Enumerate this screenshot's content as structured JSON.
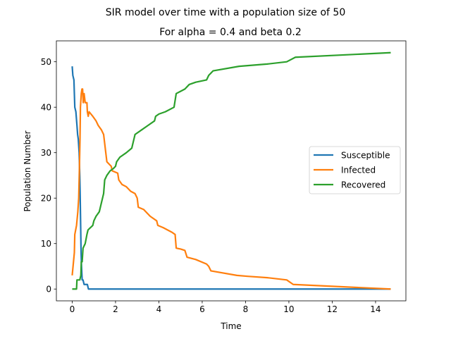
{
  "chart_data": {
    "type": "line",
    "title": "SIR model over time with a population size of 50",
    "subtitle": "For alpha = 0.4 and beta 0.2",
    "xlabel": "Time",
    "ylabel": "Population Number",
    "xlim": [
      -0.73,
      15.4
    ],
    "ylim": [
      -2.6,
      54.6
    ],
    "xticks": [
      0,
      2,
      4,
      6,
      8,
      10,
      12,
      14
    ],
    "yticks": [
      0,
      10,
      20,
      30,
      40,
      50
    ],
    "grid": false,
    "legend_position": "center-right",
    "series": [
      {
        "name": "Susceptible",
        "color": "#1f77b4",
        "points": [
          [
            0,
            49
          ],
          [
            0.03,
            47
          ],
          [
            0.08,
            46
          ],
          [
            0.1,
            43
          ],
          [
            0.12,
            40
          ],
          [
            0.17,
            39
          ],
          [
            0.22,
            36
          ],
          [
            0.25,
            34
          ],
          [
            0.28,
            33
          ],
          [
            0.32,
            30
          ],
          [
            0.35,
            25
          ],
          [
            0.37,
            20
          ],
          [
            0.39,
            14
          ],
          [
            0.41,
            8
          ],
          [
            0.43,
            5
          ],
          [
            0.46,
            2
          ],
          [
            0.5,
            2
          ],
          [
            0.55,
            1
          ],
          [
            0.7,
            1
          ],
          [
            0.75,
            0
          ],
          [
            14.7,
            0
          ]
        ]
      },
      {
        "name": "Infected",
        "color": "#ff7f0e",
        "points": [
          [
            0,
            3
          ],
          [
            0.04,
            5
          ],
          [
            0.1,
            8
          ],
          [
            0.12,
            12
          ],
          [
            0.2,
            14
          ],
          [
            0.26,
            17
          ],
          [
            0.3,
            20
          ],
          [
            0.33,
            26
          ],
          [
            0.36,
            33
          ],
          [
            0.38,
            40
          ],
          [
            0.42,
            43
          ],
          [
            0.45,
            44
          ],
          [
            0.48,
            44
          ],
          [
            0.51,
            41
          ],
          [
            0.55,
            43
          ],
          [
            0.6,
            41
          ],
          [
            0.68,
            41
          ],
          [
            0.7,
            39
          ],
          [
            0.74,
            38
          ],
          [
            0.78,
            39
          ],
          [
            0.95,
            38
          ],
          [
            1.1,
            37
          ],
          [
            1.2,
            36
          ],
          [
            1.35,
            35
          ],
          [
            1.45,
            34
          ],
          [
            1.5,
            32
          ],
          [
            1.55,
            30
          ],
          [
            1.6,
            28
          ],
          [
            1.8,
            27
          ],
          [
            1.85,
            26
          ],
          [
            2.1,
            25.5
          ],
          [
            2.15,
            24
          ],
          [
            2.3,
            23
          ],
          [
            2.5,
            22.5
          ],
          [
            2.7,
            21.5
          ],
          [
            2.9,
            21
          ],
          [
            3.0,
            20
          ],
          [
            3.05,
            18
          ],
          [
            3.3,
            17.5
          ],
          [
            3.6,
            16
          ],
          [
            3.9,
            15
          ],
          [
            3.95,
            14
          ],
          [
            4.2,
            13.5
          ],
          [
            4.6,
            12.5
          ],
          [
            4.75,
            12
          ],
          [
            4.8,
            9
          ],
          [
            5.0,
            8.8
          ],
          [
            5.2,
            8.5
          ],
          [
            5.3,
            7
          ],
          [
            5.7,
            6.5
          ],
          [
            6.2,
            5.5
          ],
          [
            6.3,
            5
          ],
          [
            6.4,
            4
          ],
          [
            7.6,
            3
          ],
          [
            8.1,
            2.8
          ],
          [
            9.0,
            2.5
          ],
          [
            9.9,
            2
          ],
          [
            10.2,
            1
          ],
          [
            14.7,
            0
          ]
        ]
      },
      {
        "name": "Recovered",
        "color": "#2ca02c",
        "points": [
          [
            0,
            0
          ],
          [
            0.2,
            0
          ],
          [
            0.22,
            2
          ],
          [
            0.35,
            2
          ],
          [
            0.4,
            3
          ],
          [
            0.42,
            6
          ],
          [
            0.46,
            6
          ],
          [
            0.5,
            9
          ],
          [
            0.6,
            10
          ],
          [
            0.68,
            12
          ],
          [
            0.73,
            13
          ],
          [
            0.95,
            14
          ],
          [
            1.0,
            15
          ],
          [
            1.1,
            16
          ],
          [
            1.25,
            17
          ],
          [
            1.3,
            18
          ],
          [
            1.45,
            21
          ],
          [
            1.5,
            24
          ],
          [
            1.6,
            25
          ],
          [
            1.75,
            26
          ],
          [
            1.9,
            26.5
          ],
          [
            2.0,
            27
          ],
          [
            2.05,
            28
          ],
          [
            2.2,
            29
          ],
          [
            2.5,
            30
          ],
          [
            2.75,
            31
          ],
          [
            2.8,
            32
          ],
          [
            2.9,
            34
          ],
          [
            3.2,
            35
          ],
          [
            3.5,
            36
          ],
          [
            3.8,
            37
          ],
          [
            3.85,
            38
          ],
          [
            4.0,
            38.5
          ],
          [
            4.3,
            39
          ],
          [
            4.7,
            40
          ],
          [
            4.8,
            43
          ],
          [
            5.0,
            43.5
          ],
          [
            5.2,
            44
          ],
          [
            5.4,
            45
          ],
          [
            5.7,
            45.5
          ],
          [
            6.2,
            46
          ],
          [
            6.3,
            47
          ],
          [
            6.5,
            48
          ],
          [
            7.7,
            49
          ],
          [
            9.0,
            49.5
          ],
          [
            9.9,
            50
          ],
          [
            10.3,
            51
          ],
          [
            14.7,
            52
          ]
        ]
      }
    ]
  }
}
